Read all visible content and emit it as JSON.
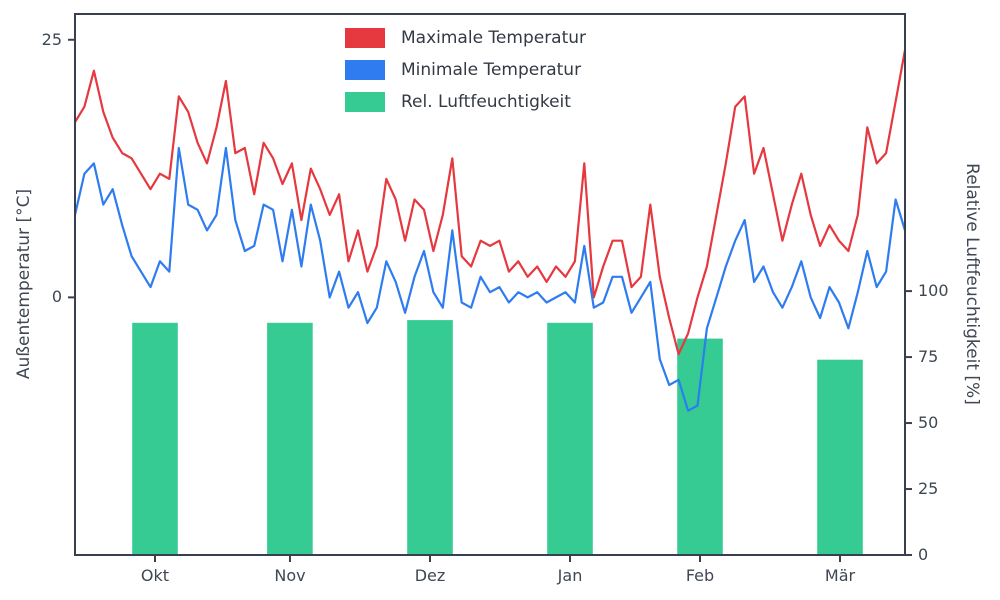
{
  "chart_data": {
    "type": "line+bar",
    "frame_color": "#39404d",
    "text_color": "#3f4754",
    "bar_width_fraction": 0.055,
    "x_ticks": {
      "labels": [
        "Okt",
        "Nov",
        "Dez",
        "Jan",
        "Feb",
        "Mär"
      ],
      "fractions": [
        0.0964,
        0.259,
        0.4277,
        0.5964,
        0.753,
        0.9217
      ]
    },
    "left_axis": {
      "label": "Außentemperatur [°C]",
      "ticks": [
        0,
        25
      ],
      "range": [
        -25,
        27.5
      ]
    },
    "right_axis": {
      "label": "Relative Luftfeuchtigkeit [%]",
      "ticks": [
        0,
        25,
        50,
        75,
        100
      ],
      "range": [
        0,
        205
      ]
    },
    "legend_position": "upper center-left, no frame",
    "series": [
      {
        "name": "Maximale Temperatur",
        "type": "line",
        "color": "#e5383f",
        "x_unit": "day index, ~2-day steps Okt–Mär",
        "values": [
          17,
          18.5,
          22,
          18,
          15.5,
          14,
          13.5,
          12,
          10.5,
          12,
          11.5,
          19.5,
          18,
          15,
          13,
          16.5,
          21,
          14,
          14.5,
          10,
          15,
          13.5,
          11,
          13,
          7.5,
          12.5,
          10.5,
          8,
          10,
          3.5,
          6.5,
          2.5,
          5,
          11.5,
          9.5,
          5.5,
          9.5,
          8.5,
          4.5,
          8,
          13.5,
          4,
          3,
          5.5,
          5,
          5.5,
          2.5,
          3.5,
          2,
          3,
          1.5,
          3,
          2,
          3.5,
          13,
          0,
          3,
          5.5,
          5.5,
          1,
          2,
          9,
          2,
          -2,
          -5.5,
          -3.5,
          0,
          3,
          8,
          13,
          18.5,
          19.5,
          12,
          14.5,
          10,
          5.5,
          9,
          12,
          8,
          5,
          7,
          5.5,
          4.5,
          8,
          16.5,
          13,
          14,
          19,
          24
        ]
      },
      {
        "name": "Minimale Temperatur",
        "type": "line",
        "color": "#2e7cf0",
        "x_unit": "day index, ~2-day steps Okt–Mär",
        "values": [
          8,
          12,
          13,
          9,
          10.5,
          7,
          4,
          2.5,
          1,
          3.5,
          2.5,
          14.5,
          9,
          8.5,
          6.5,
          8,
          14.5,
          7.5,
          4.5,
          5,
          9,
          8.5,
          3.5,
          8.5,
          3,
          9,
          5.5,
          0,
          2.5,
          -1,
          0.5,
          -2.5,
          -1,
          3.5,
          1.5,
          -1.5,
          2,
          4.5,
          0.5,
          -1,
          6.5,
          -0.5,
          -1,
          2,
          0.5,
          1,
          -0.5,
          0.5,
          0,
          0.5,
          -0.5,
          0,
          0.5,
          -0.5,
          5,
          -1,
          -0.5,
          2,
          2,
          -1.5,
          0,
          1.5,
          -6,
          -8.5,
          -8,
          -11,
          -10.5,
          -3,
          0,
          3,
          5.5,
          7.5,
          1.5,
          3,
          0.5,
          -1,
          1,
          3.5,
          0,
          -2,
          1,
          -0.5,
          -3,
          0.5,
          4.5,
          1,
          2.5,
          9.5,
          6.5
        ]
      },
      {
        "name": "Rel. Luftfeuchtigkeit",
        "type": "bar",
        "axis": "right",
        "color": "#35cb92",
        "categories": [
          "Okt",
          "Nov",
          "Dez",
          "Jan",
          "Feb",
          "Mär"
        ],
        "values": [
          88,
          88,
          89,
          88,
          82,
          74
        ]
      }
    ]
  }
}
